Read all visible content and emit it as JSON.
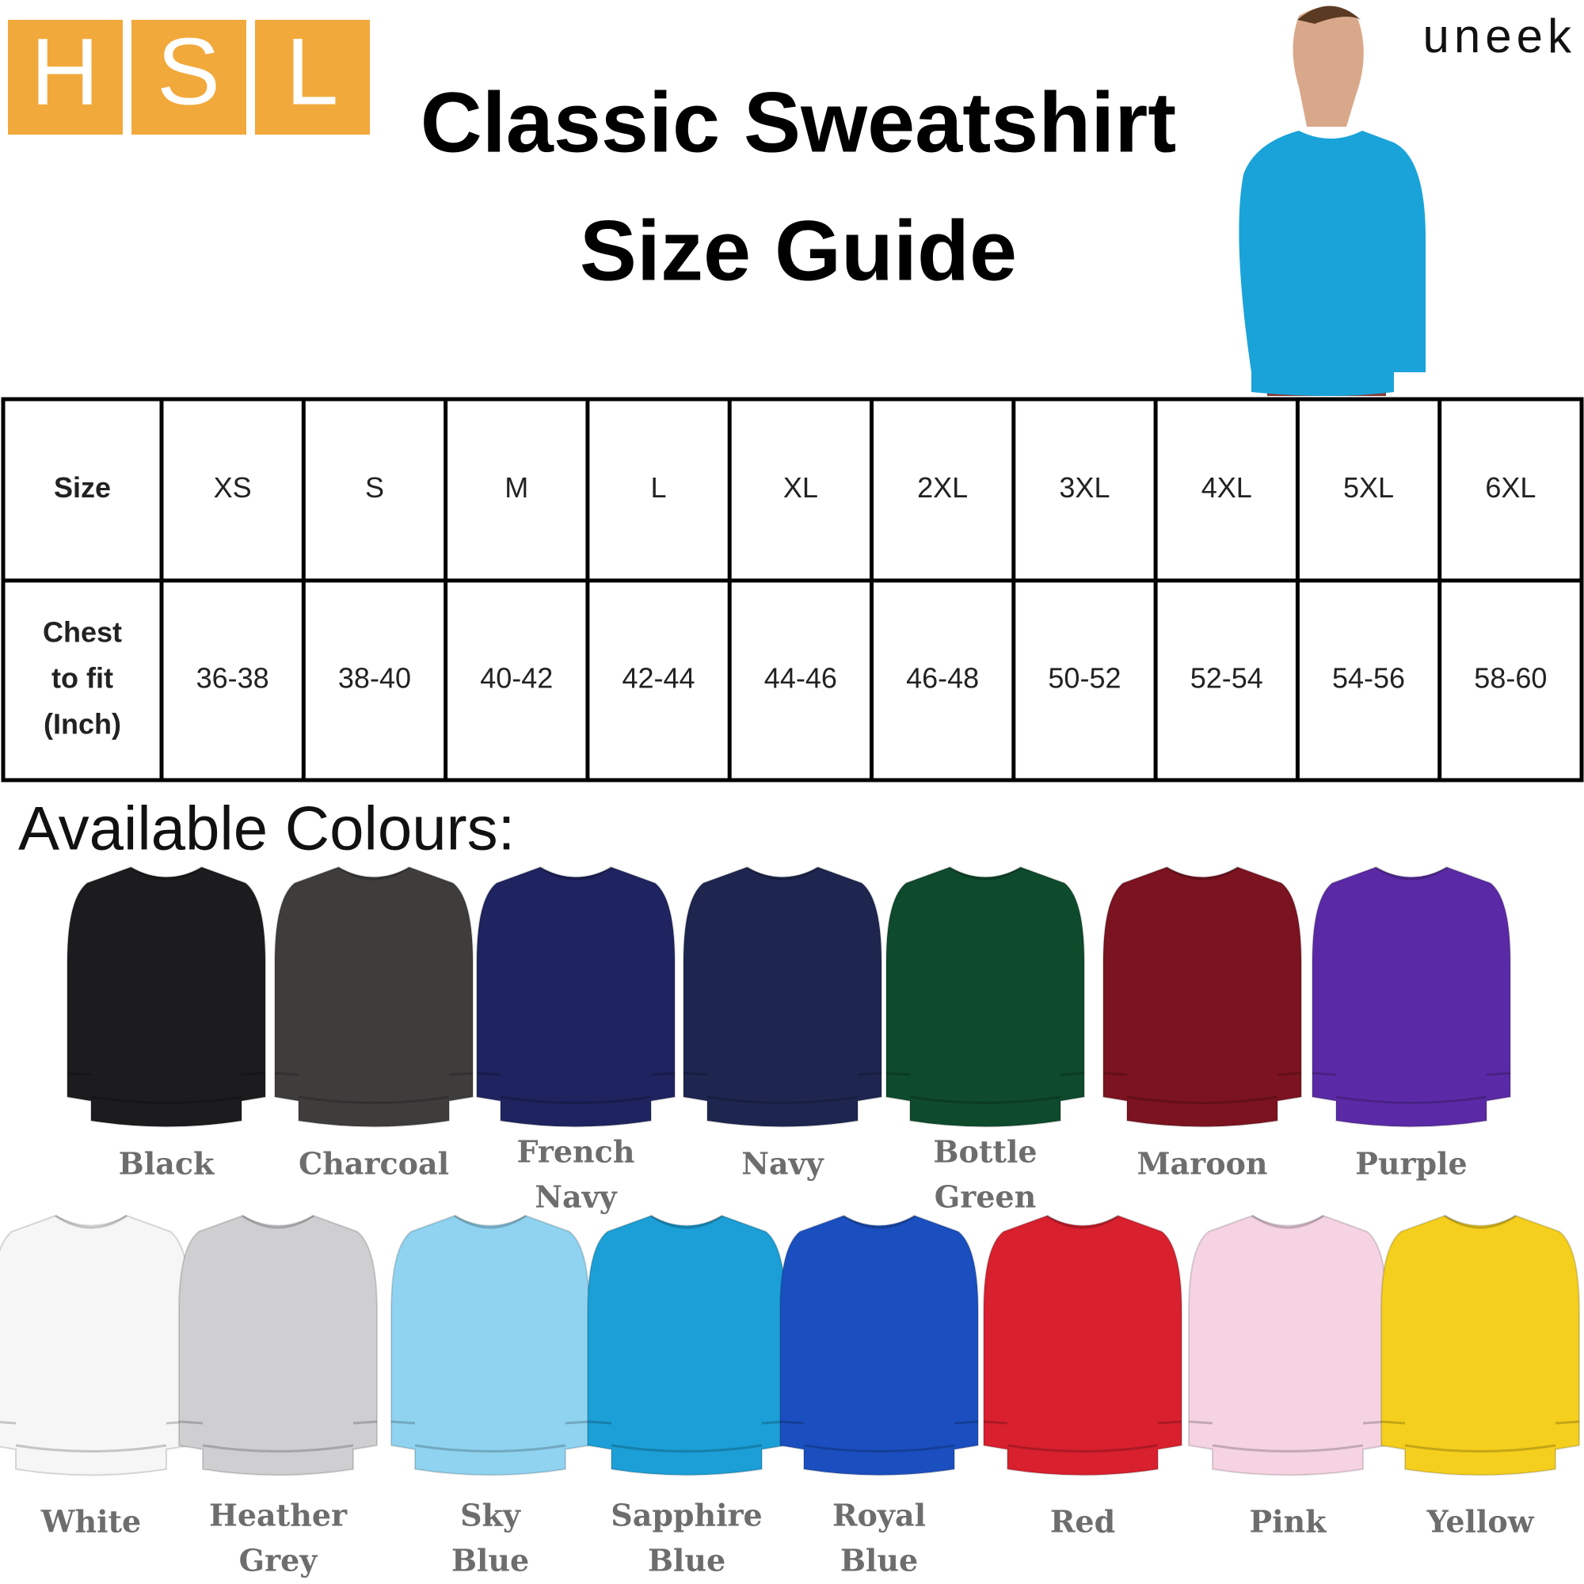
{
  "logo": {
    "letters": [
      "H",
      "S",
      "L"
    ]
  },
  "brand": "uneek",
  "title": {
    "line1": "Classic Sweatshirt",
    "line2": "Size Guide"
  },
  "table": {
    "header_label": "Size",
    "sizes": [
      "XS",
      "S",
      "M",
      "L",
      "XL",
      "2XL",
      "3XL",
      "4XL",
      "5XL",
      "6XL"
    ],
    "row_label": [
      "Chest",
      "to fit",
      "(Inch)"
    ],
    "chest": [
      "36-38",
      "38-40",
      "40-42",
      "42-44",
      "44-46",
      "46-48",
      "50-52",
      "52-54",
      "54-56",
      "58-60"
    ]
  },
  "colours_heading": "Available Colours:",
  "colours": [
    [
      {
        "name": [
          "Black"
        ],
        "color": "#1c1c1e"
      },
      {
        "name": [
          "Charcoal"
        ],
        "color": "#3f3d3c"
      },
      {
        "name": [
          "French",
          "Navy"
        ],
        "color": "#1f2460"
      },
      {
        "name": [
          "Navy"
        ],
        "color": "#1e2650"
      },
      {
        "name": [
          "Bottle",
          "Green"
        ],
        "color": "#0e4a2c"
      },
      {
        "name": [
          "Maroon"
        ],
        "color": "#7c1320"
      },
      {
        "name": [
          "Purple"
        ],
        "color": "#5a2aa6"
      }
    ],
    [
      {
        "name": [
          "White"
        ],
        "color": "#f6f6f6"
      },
      {
        "name": [
          "Heather",
          "Grey"
        ],
        "color": "#cfcfd1"
      },
      {
        "name": [
          "Sky",
          "Blue"
        ],
        "color": "#8fd3f0"
      },
      {
        "name": [
          "Sapphire",
          "Blue"
        ],
        "color": "#1b9fd6"
      },
      {
        "name": [
          "Royal",
          "Blue"
        ],
        "color": "#1b4fbf"
      },
      {
        "name": [
          "Red"
        ],
        "color": "#d8202e"
      },
      {
        "name": [
          "Pink"
        ],
        "color": "#f5d3e2"
      },
      {
        "name": [
          "Yellow"
        ],
        "color": "#f5cf1d"
      }
    ]
  ]
}
